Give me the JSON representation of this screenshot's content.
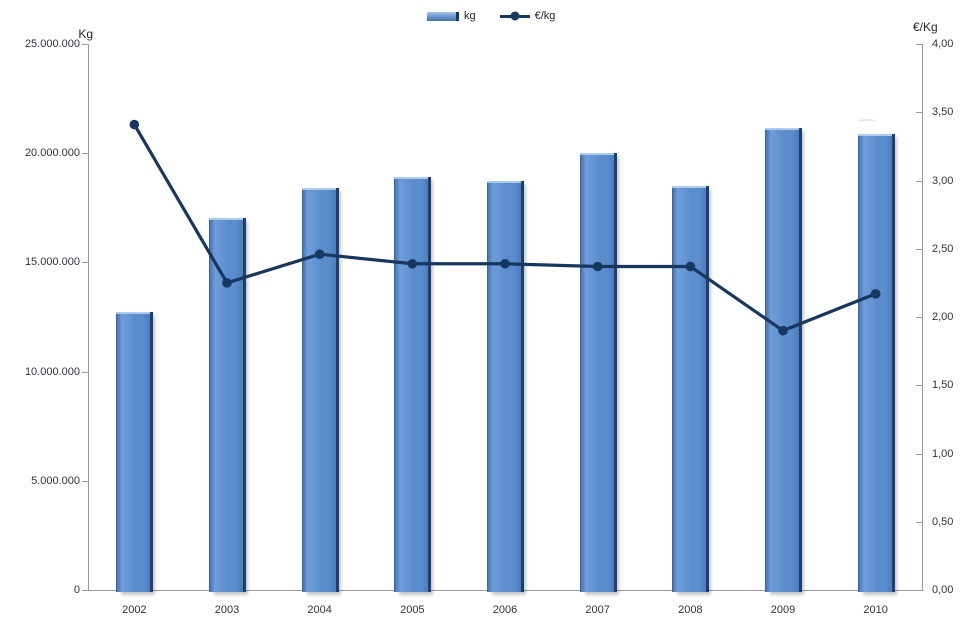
{
  "legend": {
    "bar_label": "kg",
    "line_label": "€/kg"
  },
  "left_axis": {
    "title": "Kg",
    "ticks": [
      {
        "label": "0",
        "value": 0
      },
      {
        "label": "5.000.000",
        "value": 5000000
      },
      {
        "label": "10.000.000",
        "value": 10000000
      },
      {
        "label": "15.000.000",
        "value": 15000000
      },
      {
        "label": "20.000.000",
        "value": 20000000
      },
      {
        "label": "25.000.000",
        "value": 25000000
      }
    ]
  },
  "right_axis": {
    "title": "€/Kg",
    "ticks": [
      {
        "label": "0,00",
        "value": 0
      },
      {
        "label": "0,50",
        "value": 0.5
      },
      {
        "label": "1,00",
        "value": 1
      },
      {
        "label": "1,50",
        "value": 1.5
      },
      {
        "label": "2,00",
        "value": 2
      },
      {
        "label": "2,50",
        "value": 2.5
      },
      {
        "label": "3,00",
        "value": 3
      },
      {
        "label": "3,50",
        "value": 3.5
      },
      {
        "label": "4,00",
        "value": 4
      }
    ]
  },
  "chart_data": {
    "type": "combo",
    "categories": [
      "2002",
      "2003",
      "2004",
      "2005",
      "2006",
      "2007",
      "2008",
      "2009",
      "2010"
    ],
    "series": [
      {
        "name": "kg",
        "type": "bar",
        "axis": "left",
        "values": [
          12750000,
          17050000,
          18400000,
          18900000,
          18750000,
          20000000,
          18500000,
          21150000,
          20900000
        ]
      },
      {
        "name": "€/kg",
        "type": "line",
        "axis": "right",
        "values": [
          3.41,
          2.25,
          2.46,
          2.39,
          2.39,
          2.37,
          2.37,
          1.9,
          2.17
        ]
      }
    ],
    "left_ylabel": "Kg",
    "right_ylabel": "€/Kg",
    "left_ylim": [
      0,
      25000000
    ],
    "right_ylim": [
      0,
      4
    ],
    "grid": false,
    "legend_position": "top-center"
  },
  "colors": {
    "bar_fill": "#5b8dce",
    "bar_fill_light": "#6f9dd9",
    "bar_fill_dark": "#4a77b3",
    "bar_top_highlight": "#aecbeb",
    "bar_right_edge": "#1d3f6e",
    "line": "#17375e",
    "axis_line": "#9a9a9a",
    "text": "#33333d"
  }
}
